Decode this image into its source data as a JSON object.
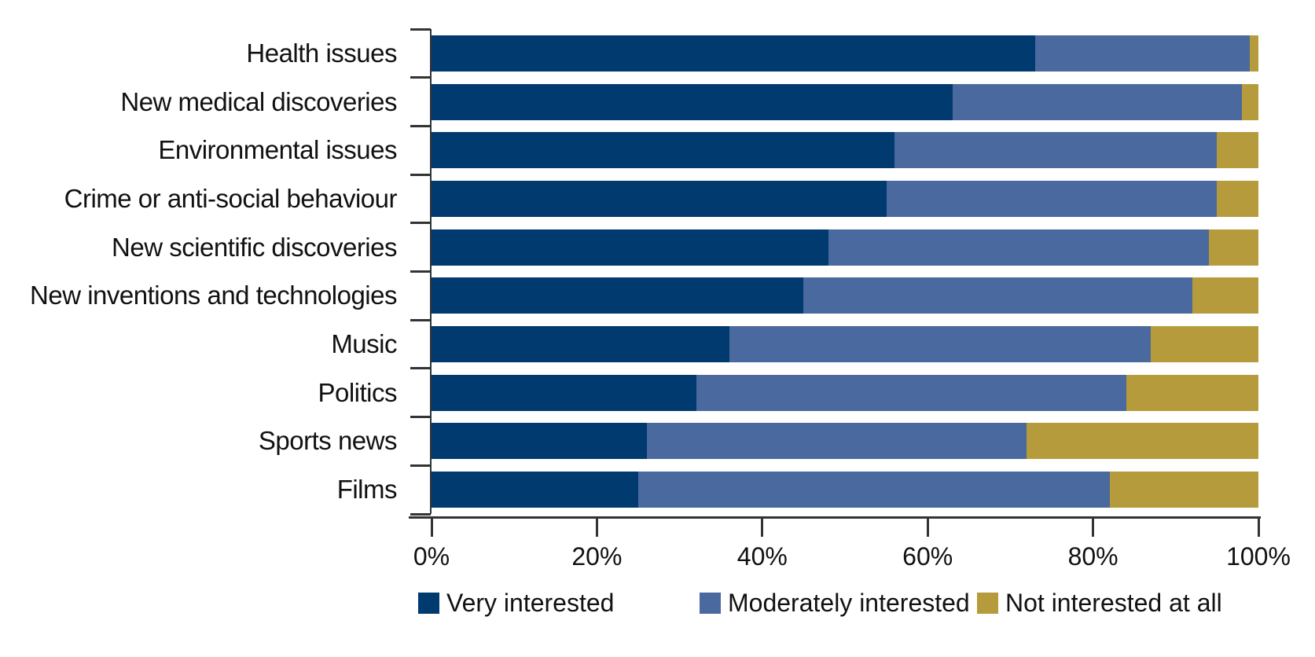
{
  "chart_data": {
    "type": "bar",
    "orientation": "horizontal",
    "stacked": true,
    "title": "",
    "xlabel": "",
    "ylabel": "",
    "x_axis": {
      "min": 0,
      "max": 100,
      "tick_labels": [
        "0%",
        "20%",
        "40%",
        "60%",
        "80%",
        "100%"
      ],
      "grid": false
    },
    "categories": [
      "Health issues",
      "New medical discoveries",
      "Environmental issues",
      "Crime or anti-social behaviour",
      "New scientific discoveries",
      "New inventions and technologies",
      "Music",
      "Politics",
      "Sports news",
      "Films"
    ],
    "series": [
      {
        "name": "Very interested",
        "color": "#003a6f",
        "values": [
          73,
          63,
          56,
          55,
          48,
          45,
          36,
          32,
          26,
          25
        ]
      },
      {
        "name": "Moderately interested",
        "color": "#4a699e",
        "values": [
          26,
          35,
          39,
          40,
          46,
          47,
          51,
          52,
          46,
          57
        ]
      },
      {
        "name": "Not interested at all",
        "color": "#b69b3c",
        "values": [
          1,
          2,
          5,
          5,
          6,
          8,
          13,
          16,
          28,
          18
        ]
      }
    ],
    "legend": {
      "position": "bottom",
      "entries": [
        "Very interested",
        "Moderately interested",
        "Not interested at all"
      ]
    },
    "axis_color": "#333333",
    "text_color": "#111111",
    "background_color": "#ffffff"
  }
}
